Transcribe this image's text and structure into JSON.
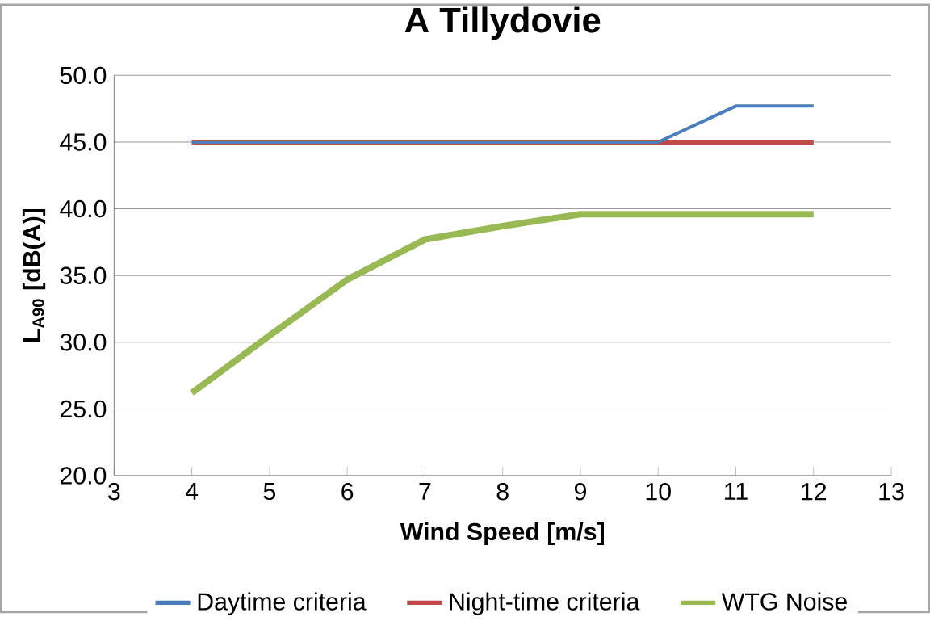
{
  "chart_data": {
    "type": "line",
    "title": "A Tillydovie",
    "xlabel": "Wind Speed [m/s]",
    "ylabel": "L$_{A90}$ [dB(A)]",
    "x": [
      4,
      5,
      6,
      7,
      8,
      9,
      10,
      11,
      12
    ],
    "series": [
      {
        "name": "Daytime criteria",
        "color": "#4a7ebb",
        "values": [
          45,
          45,
          45,
          45,
          45,
          45,
          45,
          47.7,
          47.7
        ]
      },
      {
        "name": "Night-time criteria",
        "color": "#be4b48",
        "values": [
          45,
          45,
          45,
          45,
          45,
          45,
          45,
          45,
          45
        ]
      },
      {
        "name": "WTG Noise",
        "color": "#98b954",
        "values": [
          26.2,
          30.5,
          34.7,
          37.7,
          38.7,
          39.6,
          39.6,
          39.6,
          39.6
        ]
      }
    ],
    "xlim": [
      3,
      13
    ],
    "xticks": [
      3,
      4,
      5,
      6,
      7,
      8,
      9,
      10,
      11,
      12,
      13
    ],
    "ylim": [
      20,
      50
    ],
    "yticks": [
      {
        "value": 20,
        "label": "20.0"
      },
      {
        "value": 25,
        "label": "25.0"
      },
      {
        "value": 30,
        "label": "30.0"
      },
      {
        "value": 35,
        "label": "35.0"
      },
      {
        "value": 40,
        "label": "40.0"
      },
      {
        "value": 45,
        "label": "45.0"
      },
      {
        "value": 50,
        "label": "50.0"
      }
    ],
    "grid": "y",
    "legend": "bottom",
    "marker": "none",
    "line_style": "solid"
  }
}
